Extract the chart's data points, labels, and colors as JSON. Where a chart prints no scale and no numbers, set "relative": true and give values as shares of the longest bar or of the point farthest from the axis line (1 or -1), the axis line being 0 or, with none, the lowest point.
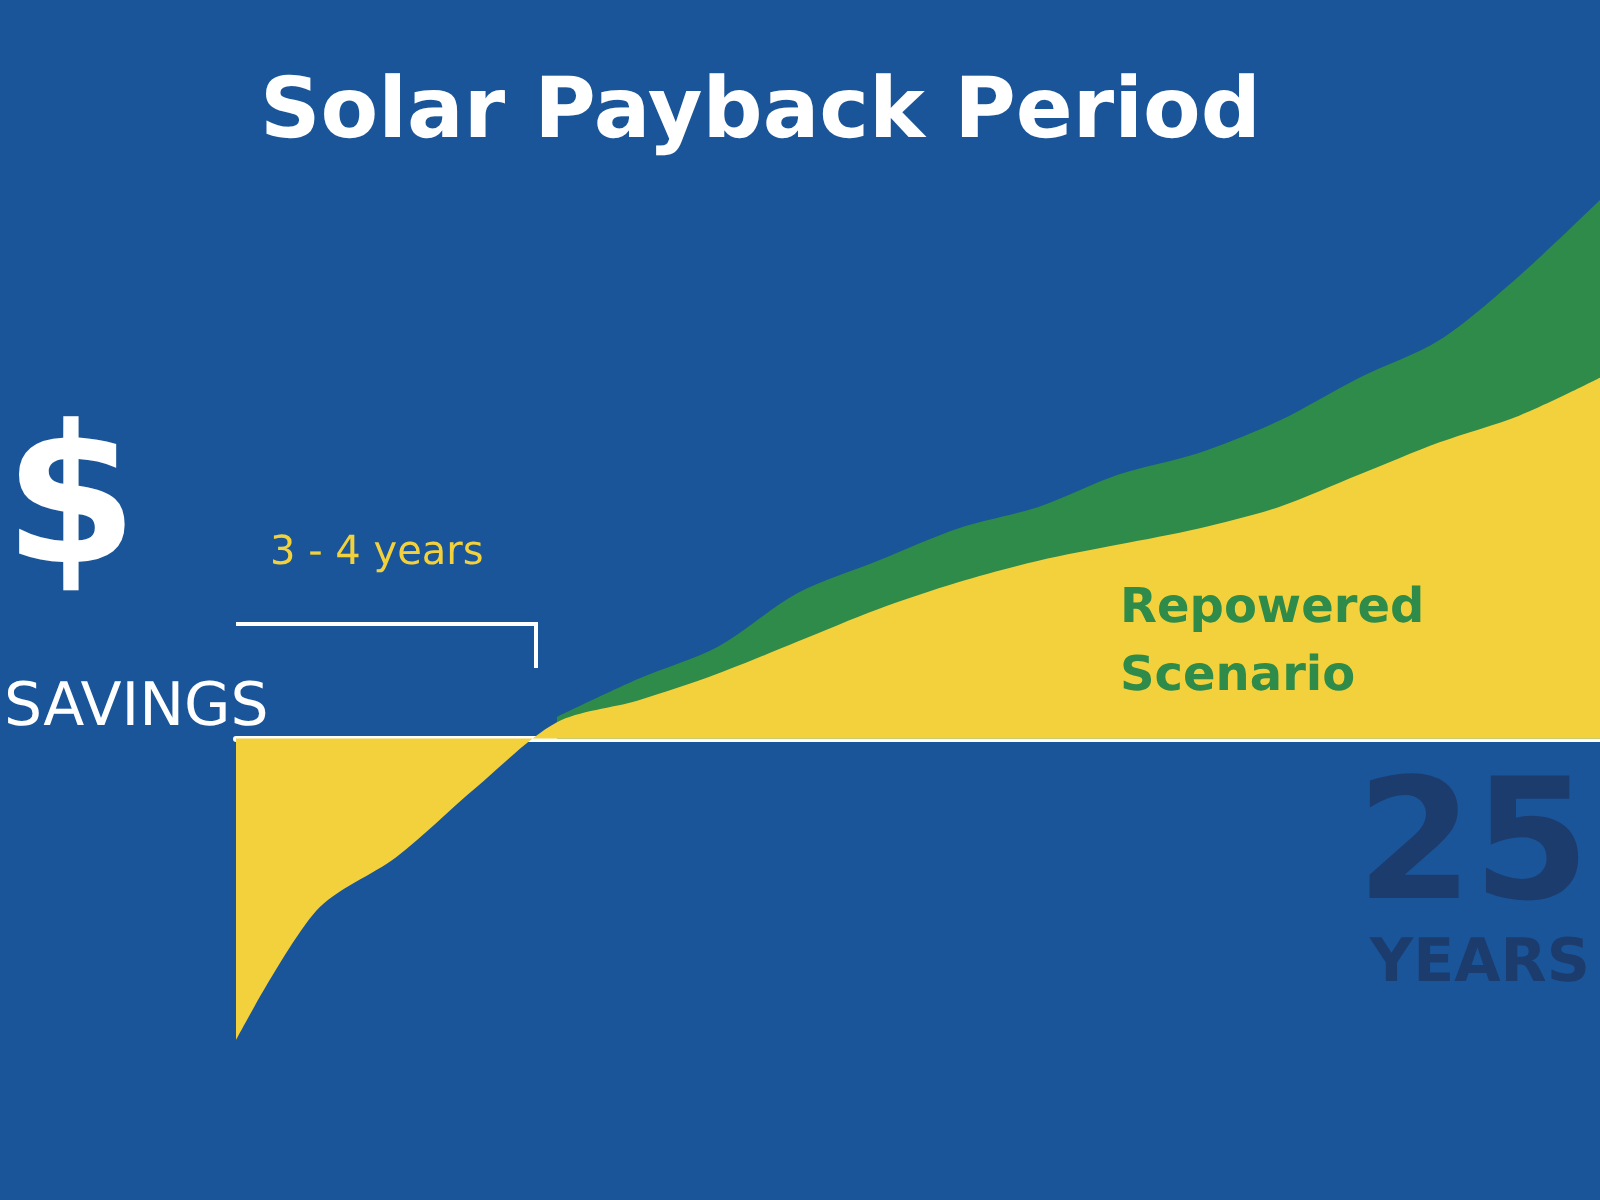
{
  "chart_data": {
    "type": "area",
    "title": "Solar Payback Period",
    "ylabel": "$\nSAVINGS",
    "xlabel": "25\nYEARS",
    "relative": true,
    "annotations": [
      "3 - 4 years",
      "Repowered\nScenario"
    ],
    "categories": [
      null,
      null,
      null,
      null,
      null,
      null,
      null,
      null,
      null,
      null,
      null,
      null,
      null,
      null,
      null,
      null,
      null,
      null
    ],
    "series": [
      {
        "color": "#2e8b4a",
        "values": [
          null,
          null,
          null,
          null,
          0.04,
          0.11,
          0.17,
          0.27,
          0.33,
          0.39,
          0.43,
          0.49,
          0.53,
          0.59,
          0.67,
          0.74,
          0.86,
          1
        ]
      },
      {
        "color": "#f2d13c",
        "values": [
          -0.56,
          -0.32,
          -0.22,
          -0.09,
          0.03,
          0.07,
          0.12,
          0.18,
          0.24,
          0.29,
          0.33,
          0.36,
          0.39,
          0.43,
          0.49,
          0.55,
          0.6,
          0.67
        ]
      }
    ]
  }
}
